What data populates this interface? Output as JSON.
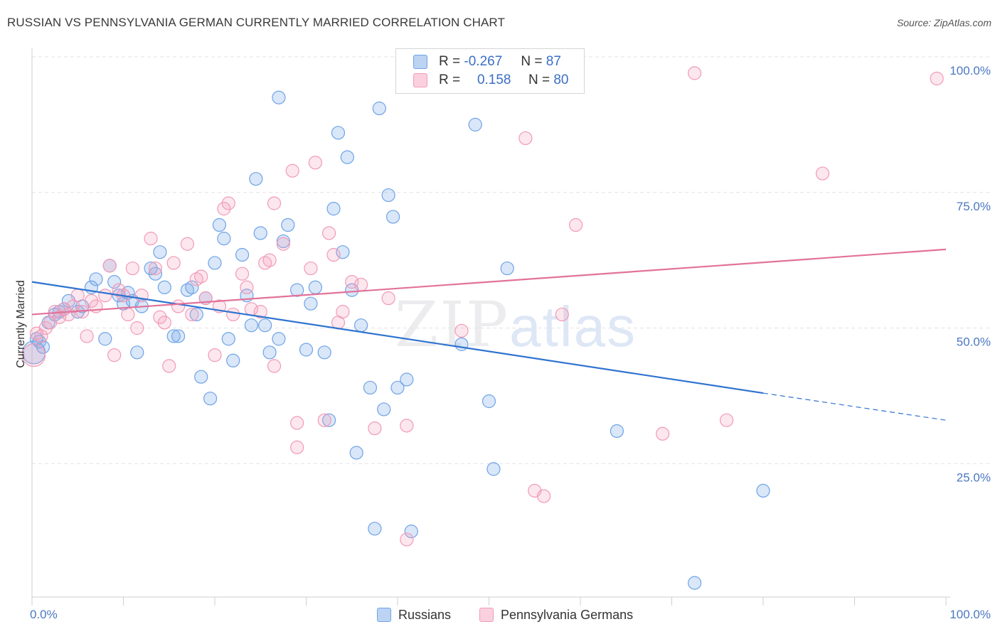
{
  "title": "RUSSIAN VS PENNSYLVANIA GERMAN CURRENTLY MARRIED CORRELATION CHART",
  "source": "Source: ZipAtlas.com",
  "watermark": {
    "zip": "ZIP",
    "atlas": "atlas"
  },
  "legend_top": {
    "rows": [
      {
        "r_label": "R =",
        "r_value": "-0.267",
        "n_label": "N =",
        "n_value": "87"
      },
      {
        "r_label": "R =",
        "r_value": "0.158",
        "n_label": "N =",
        "n_value": "80"
      }
    ]
  },
  "chart_data": {
    "type": "scatter",
    "title": "RUSSIAN VS PENNSYLVANIA GERMAN CURRENTLY MARRIED CORRELATION CHART",
    "xlabel": "",
    "ylabel": "Currently Married",
    "xlim": [
      0,
      100
    ],
    "ylim": [
      0,
      100
    ],
    "x_tick_labels": [
      "0.0%",
      "100.0%"
    ],
    "y_tick_labels": [
      "100.0%",
      "75.0%",
      "50.0%",
      "25.0%"
    ],
    "y_ticks": [
      100,
      75,
      50,
      25
    ],
    "grid": true,
    "legend_position": "bottom-center",
    "colors": {
      "Russians": "#6fa3e6",
      "Pennsylvania Germans": "#f29ab6",
      "russian_line": "#2f73d0",
      "pg_line": "#e2729a"
    },
    "series": [
      {
        "name": "Russians",
        "trend": {
          "x0": 0,
          "y0": 58.5,
          "x1": 80,
          "y1": 38.0,
          "dash_to": 100,
          "dash_y": 33.0
        },
        "points": [
          [
            0.2,
            45.5
          ],
          [
            0.5,
            48
          ],
          [
            0.8,
            47.5
          ],
          [
            1.2,
            46.5
          ],
          [
            1.8,
            51
          ],
          [
            2.5,
            52.5
          ],
          [
            3,
            53
          ],
          [
            3.5,
            53.5
          ],
          [
            4,
            55
          ],
          [
            5,
            53
          ],
          [
            5.5,
            54
          ],
          [
            6.5,
            57.5
          ],
          [
            7,
            59
          ],
          [
            8,
            48
          ],
          [
            8.5,
            61.5
          ],
          [
            9,
            58.5
          ],
          [
            9.5,
            56
          ],
          [
            10,
            54.5
          ],
          [
            10.5,
            56.5
          ],
          [
            11,
            55
          ],
          [
            11.5,
            45.5
          ],
          [
            12,
            54
          ],
          [
            13,
            61
          ],
          [
            13.5,
            60
          ],
          [
            14,
            64
          ],
          [
            14.5,
            57.5
          ],
          [
            15.5,
            48.5
          ],
          [
            16,
            48.5
          ],
          [
            17,
            57
          ],
          [
            17.5,
            57.5
          ],
          [
            18,
            52.5
          ],
          [
            18.5,
            41
          ],
          [
            19,
            55.5
          ],
          [
            19.5,
            37
          ],
          [
            20,
            62
          ],
          [
            20.5,
            69
          ],
          [
            21,
            66.5
          ],
          [
            21.5,
            48
          ],
          [
            22,
            44
          ],
          [
            23,
            63.5
          ],
          [
            23.5,
            56
          ],
          [
            24,
            50.5
          ],
          [
            24.5,
            77.5
          ],
          [
            25,
            67.5
          ],
          [
            25.5,
            50.5
          ],
          [
            26,
            45.5
          ],
          [
            27,
            48
          ],
          [
            27.5,
            66
          ],
          [
            28,
            69
          ],
          [
            27,
            92.5
          ],
          [
            29,
            57
          ],
          [
            30,
            46
          ],
          [
            30.5,
            54.5
          ],
          [
            31,
            57.5
          ],
          [
            32,
            45.5
          ],
          [
            32.5,
            33
          ],
          [
            33,
            72
          ],
          [
            33.5,
            86
          ],
          [
            34,
            64
          ],
          [
            34.5,
            81.5
          ],
          [
            35,
            57
          ],
          [
            35.5,
            27
          ],
          [
            36,
            50.5
          ],
          [
            37,
            39
          ],
          [
            37.5,
            13
          ],
          [
            38,
            90.5
          ],
          [
            38.5,
            35
          ],
          [
            39,
            74.5
          ],
          [
            39.5,
            70.5
          ],
          [
            40,
            39
          ],
          [
            41,
            40.5
          ],
          [
            41.5,
            12.5
          ],
          [
            47,
            47
          ],
          [
            48.5,
            87.5
          ],
          [
            50,
            36.5
          ],
          [
            50.5,
            24
          ],
          [
            52,
            61
          ],
          [
            64,
            31
          ],
          [
            80,
            20
          ],
          [
            72.5,
            3
          ]
        ]
      },
      {
        "name": "Pennsylvania Germans",
        "trend": {
          "x0": 0,
          "y0": 52.5,
          "x1": 100,
          "y1": 64.5
        },
        "points": [
          [
            0.2,
            45
          ],
          [
            0.5,
            49
          ],
          [
            1,
            48.5
          ],
          [
            1.5,
            50
          ],
          [
            2,
            51
          ],
          [
            2.5,
            53
          ],
          [
            3,
            52
          ],
          [
            3.5,
            53.5
          ],
          [
            4,
            52.5
          ],
          [
            4.5,
            54
          ],
          [
            5,
            56
          ],
          [
            5.5,
            53
          ],
          [
            6,
            48.5
          ],
          [
            6.5,
            55
          ],
          [
            7,
            54
          ],
          [
            8,
            56
          ],
          [
            8.5,
            61.5
          ],
          [
            9,
            45
          ],
          [
            9.5,
            57
          ],
          [
            10,
            56
          ],
          [
            10.5,
            52.5
          ],
          [
            11,
            61
          ],
          [
            11.5,
            50
          ],
          [
            12,
            56
          ],
          [
            13,
            66.5
          ],
          [
            13.5,
            61
          ],
          [
            14,
            52
          ],
          [
            14.5,
            51
          ],
          [
            15,
            43
          ],
          [
            15.5,
            62
          ],
          [
            16,
            54
          ],
          [
            17,
            65.5
          ],
          [
            17.5,
            52.5
          ],
          [
            18,
            59
          ],
          [
            18.5,
            59.5
          ],
          [
            19,
            55.5
          ],
          [
            20,
            45
          ],
          [
            20.5,
            54
          ],
          [
            21,
            72
          ],
          [
            21.5,
            73
          ],
          [
            22,
            52.5
          ],
          [
            23,
            60
          ],
          [
            23.5,
            57.5
          ],
          [
            24,
            53.5
          ],
          [
            25,
            53
          ],
          [
            25.5,
            62
          ],
          [
            26,
            62.5
          ],
          [
            26.5,
            73
          ],
          [
            26.5,
            43
          ],
          [
            27.5,
            65.5
          ],
          [
            28.5,
            79
          ],
          [
            29,
            32.5
          ],
          [
            29,
            28
          ],
          [
            30.5,
            61
          ],
          [
            31,
            80.5
          ],
          [
            32,
            33
          ],
          [
            32.5,
            67.5
          ],
          [
            33,
            63.5
          ],
          [
            33.5,
            51
          ],
          [
            34,
            53
          ],
          [
            35,
            58.5
          ],
          [
            36,
            58
          ],
          [
            37.5,
            31.5
          ],
          [
            39,
            55.5
          ],
          [
            41,
            32
          ],
          [
            41,
            11
          ],
          [
            47,
            49.5
          ],
          [
            54,
            85
          ],
          [
            55,
            20
          ],
          [
            56,
            19
          ],
          [
            58,
            52.5
          ],
          [
            59.5,
            69
          ],
          [
            69,
            30.5
          ],
          [
            72.5,
            97
          ],
          [
            76,
            33
          ],
          [
            86.5,
            78.5
          ],
          [
            99,
            96
          ]
        ]
      }
    ]
  },
  "bottom_legend": [
    "Russians",
    "Pennsylvania Germans"
  ]
}
